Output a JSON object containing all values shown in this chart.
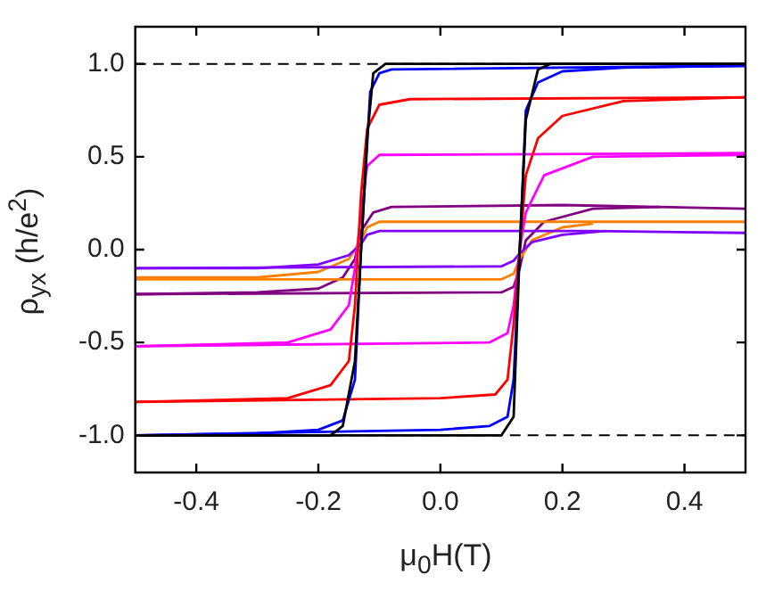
{
  "chart_data": {
    "type": "line",
    "xlabel": "μ$_{0}$H(T)",
    "ylabel": "ρ$_{yx}$ (h/e$^{2}$)",
    "xlim": [
      -0.5,
      0.5
    ],
    "xticks": [
      -0.4,
      -0.2,
      {
        "value": 0,
        "label": "0.0"
      },
      0.2,
      0.4
    ],
    "ylim": [
      -1.2,
      1.2
    ],
    "yticks": [
      {
        "value": -1,
        "label": "-1.0"
      },
      -0.5,
      {
        "value": 0,
        "label": "0.0"
      },
      0.5,
      {
        "value": 1,
        "label": "1.0"
      }
    ],
    "grid": false,
    "legend": false,
    "marker": "none",
    "line_style": "solid",
    "ref_lines": [
      {
        "axis": "y",
        "value": 1,
        "color": "#000000",
        "line_style": "dashed"
      },
      {
        "axis": "y",
        "value": -1,
        "color": "#000000",
        "line_style": "dashed"
      }
    ],
    "series": [
      {
        "color": "#800080",
        "x": [
          -0.5,
          -0.3,
          -0.2,
          -0.16,
          -0.14,
          -0.13,
          -0.11,
          -0.08,
          0.2,
          0.5
        ],
        "values": [
          -0.24,
          -0.23,
          -0.21,
          -0.15,
          -0.05,
          0.1,
          0.2,
          0.23,
          0.24,
          0.22
        ]
      },
      {
        "color": "#800080",
        "x": [
          -0.5,
          0.1,
          0.12,
          0.13,
          0.14,
          0.17,
          0.25,
          0.36
        ],
        "values": [
          -0.24,
          -0.23,
          -0.2,
          -0.1,
          0.05,
          0.15,
          0.22,
          0.23
        ]
      },
      {
        "color": "#ff8000",
        "x": [
          -0.5,
          -0.3,
          -0.2,
          -0.15,
          -0.13,
          -0.12,
          -0.1,
          0.5
        ],
        "values": [
          -0.15,
          -0.15,
          -0.12,
          -0.05,
          0.05,
          0.12,
          0.15,
          0.15
        ]
      },
      {
        "color": "#ff8000",
        "x": [
          -0.5,
          0.1,
          0.12,
          0.13,
          0.15,
          0.2,
          0.25
        ],
        "values": [
          -0.16,
          -0.16,
          -0.13,
          -0.05,
          0.05,
          0.12,
          0.14
        ]
      },
      {
        "color": "#8000ff",
        "x": [
          -0.5,
          -0.3,
          -0.2,
          -0.15,
          -0.13,
          -0.12,
          -0.1,
          0.25,
          0.5
        ],
        "values": [
          -0.1,
          -0.1,
          -0.08,
          -0.03,
          0.03,
          0.08,
          0.1,
          0.1,
          0.09
        ]
      },
      {
        "color": "#8000ff",
        "x": [
          -0.5,
          0.1,
          0.12,
          0.13,
          0.15,
          0.2,
          0.27
        ],
        "values": [
          -0.1,
          -0.09,
          -0.06,
          -0.02,
          0.04,
          0.08,
          0.1
        ]
      },
      {
        "color": "#ff00ff",
        "x": [
          -0.5,
          -0.25,
          -0.18,
          -0.15,
          -0.14,
          -0.13,
          -0.12,
          -0.1,
          0.5
        ],
        "values": [
          -0.52,
          -0.5,
          -0.43,
          -0.3,
          -0.1,
          0.2,
          0.45,
          0.51,
          0.52
        ]
      },
      {
        "color": "#ff00ff",
        "x": [
          -0.5,
          0.08,
          0.11,
          0.12,
          0.13,
          0.14,
          0.17,
          0.25,
          0.5
        ],
        "values": [
          -0.52,
          -0.5,
          -0.45,
          -0.3,
          0.0,
          0.2,
          0.4,
          0.5,
          0.51
        ]
      },
      {
        "color": "#ff0000",
        "x": [
          -0.5,
          -0.25,
          -0.18,
          -0.15,
          -0.14,
          -0.13,
          -0.12,
          -0.1,
          -0.05,
          0.5
        ],
        "values": [
          -0.82,
          -0.8,
          -0.73,
          -0.6,
          -0.3,
          0.3,
          0.65,
          0.78,
          0.81,
          0.82
        ]
      },
      {
        "color": "#ff0000",
        "x": [
          -0.5,
          0.0,
          0.09,
          0.11,
          0.12,
          0.13,
          0.14,
          0.16,
          0.2,
          0.3,
          0.5
        ],
        "values": [
          -0.82,
          -0.8,
          -0.78,
          -0.7,
          -0.4,
          0.0,
          0.4,
          0.6,
          0.72,
          0.8,
          0.82
        ]
      },
      {
        "color": "#0000ff",
        "x": [
          -0.5,
          -0.3,
          -0.2,
          -0.16,
          -0.14,
          -0.13,
          -0.115,
          -0.1,
          -0.08,
          0.5
        ],
        "values": [
          -1.0,
          -0.99,
          -0.97,
          -0.92,
          -0.7,
          0.0,
          0.85,
          0.95,
          0.97,
          0.99
        ]
      },
      {
        "color": "#0000ff",
        "x": [
          -0.5,
          0.0,
          0.08,
          0.11,
          0.12,
          0.13,
          0.14,
          0.16,
          0.2,
          0.3,
          0.5
        ],
        "values": [
          -1.0,
          -0.97,
          -0.95,
          -0.9,
          -0.7,
          0.0,
          0.75,
          0.9,
          0.96,
          0.98,
          0.99
        ]
      },
      {
        "color": "#000000",
        "x": [
          -0.5,
          -0.18,
          -0.16,
          -0.14,
          -0.13,
          -0.12,
          -0.11,
          -0.09,
          0.5
        ],
        "values": [
          -1.0,
          -1.0,
          -0.95,
          -0.6,
          0.0,
          0.6,
          0.95,
          1.0,
          1.0
        ]
      },
      {
        "color": "#000000",
        "x": [
          -0.5,
          0.1,
          0.12,
          0.13,
          0.14,
          0.16,
          0.18,
          0.5
        ],
        "values": [
          -1.0,
          -1.0,
          -0.9,
          0.0,
          0.7,
          0.97,
          1.0,
          1.0
        ]
      }
    ]
  }
}
